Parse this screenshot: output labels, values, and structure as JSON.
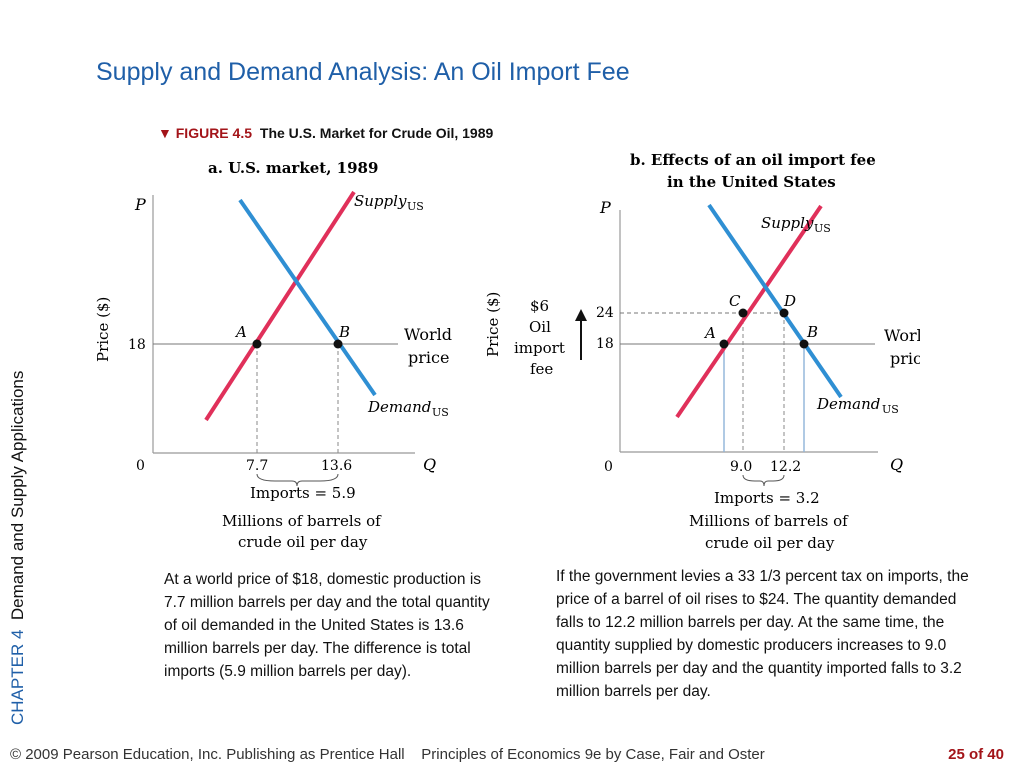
{
  "slide": {
    "title": "Supply and Demand Analysis: An Oil Import Fee",
    "side_chapter": "CHAPTER 4",
    "side_title": "Demand and Supply Applications"
  },
  "figure": {
    "marker": "▼",
    "number": "FIGURE 4.5",
    "caption": "The U.S. Market for Crude Oil, 1989"
  },
  "panel_a": {
    "title": "a. U.S. market, 1989",
    "p_axis": "P",
    "q_axis": "Q",
    "origin": "0",
    "price_label": "Price ($)",
    "tick_18": "18",
    "supply": "Supply",
    "supply_sub": "US",
    "demand": "Demand",
    "demand_sub": "US",
    "point_a": "A",
    "point_b": "B",
    "world_1": "World",
    "world_2": "price",
    "q1": "7.7",
    "q2": "13.6",
    "imports": "Imports = 5.9",
    "units_1": "Millions of barrels of",
    "units_2": "crude oil per day"
  },
  "panel_b": {
    "title_1": "b. Effects of an oil import fee",
    "title_2": "in the United States",
    "p_axis": "P",
    "q_axis": "Q",
    "origin": "0",
    "price_label": "Price ($)",
    "fee_1": "$6",
    "fee_2": "Oil",
    "fee_3": "import",
    "fee_4": "fee",
    "tick_24": "24",
    "tick_18": "18",
    "supply": "Supply",
    "supply_sub": "US",
    "demand": "Demand",
    "demand_sub": "US",
    "point_a": "A",
    "point_b": "B",
    "point_c": "C",
    "point_d": "D",
    "world_1": "World",
    "world_2": "price",
    "q1": "9.0",
    "q2": "12.2",
    "imports": "Imports = 3.2",
    "units_1": "Millions of barrels of",
    "units_2": "crude oil per day"
  },
  "text": {
    "left": "At a world price of $18, domestic production is 7.7 million barrels per day and the total quantity of oil demanded in the United States is 13.6 million barrels per day. The difference is total imports (5.9 million barrels per day).",
    "right": "If the government levies a 33 1/3 percent tax on imports, the price of a barrel of oil rises to $24. The quantity demanded falls to 12.2 million barrels per day. At the same time, the quantity supplied by domestic producers increases to 9.0 million barrels per day and the quantity imported falls to 3.2 million barrels per day."
  },
  "footer": {
    "copyright": "© 2009 Pearson Education, Inc. Publishing as Prentice Hall",
    "book": "Principles of Economics 9e by Case, Fair and Oster",
    "page": "25",
    "page_of": "of 40"
  },
  "colors": {
    "supply": "#e0305a",
    "demand": "#2f8fd3",
    "title": "#1f5fa8",
    "accent": "#a31419"
  }
}
